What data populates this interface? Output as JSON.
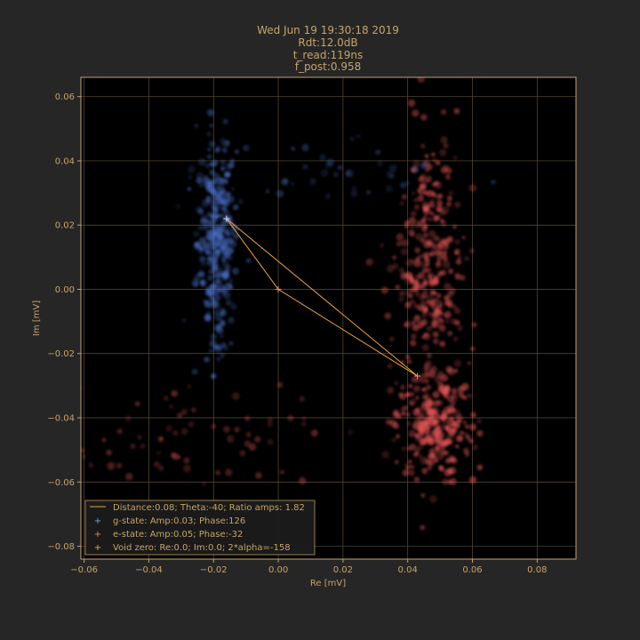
{
  "title_lines": [
    "Wed Jun 19 19:30:18 2019",
    "Rdt:12.0dB",
    "t_read:119ns",
    "f_post:0.958"
  ],
  "colors": {
    "background": "#262626",
    "axes_bg": "#000000",
    "accent": "#c8a36a",
    "grid": "#5e4f34",
    "line": "#e8a33a",
    "g_state": "#4a70c8",
    "e_state": "#f05a5a"
  },
  "chart_data": {
    "type": "scatter",
    "xlabel": "Re [mV]",
    "ylabel": "Im [mV]",
    "xlim": [
      -0.061,
      0.092
    ],
    "ylim": [
      -0.084,
      0.066
    ],
    "xticks": [
      -0.06,
      -0.04,
      -0.02,
      0.0,
      0.02,
      0.04,
      0.06,
      0.08
    ],
    "xtick_labels": [
      "−0.06",
      "−0.04",
      "−0.02",
      "0.00",
      "0.02",
      "0.04",
      "0.06",
      "0.08"
    ],
    "yticks": [
      0.06,
      0.04,
      0.02,
      0.0,
      -0.02,
      -0.04,
      -0.06,
      -0.08
    ],
    "ytick_labels": [
      "0.06",
      "0.04",
      "0.02",
      "0.00",
      "−0.02",
      "−0.04",
      "−0.06",
      "−0.08"
    ],
    "grid": true,
    "legend_position": "lower-left",
    "clusters": [
      {
        "state": "g",
        "center": [
          -0.019,
          0.015
        ],
        "spread": [
          0.003,
          0.016
        ],
        "count": 320
      },
      {
        "state": "e",
        "center": [
          0.048,
          -0.042
        ],
        "spread": [
          0.006,
          0.008
        ],
        "count": 260
      },
      {
        "state": "e",
        "center": [
          0.047,
          0.005
        ],
        "spread": [
          0.005,
          0.022
        ],
        "count": 320
      },
      {
        "state": "e",
        "center": [
          -0.03,
          -0.045
        ],
        "spread": [
          0.02,
          0.008
        ],
        "count": 70
      },
      {
        "state": "g",
        "center": [
          0.015,
          0.035
        ],
        "spread": [
          0.018,
          0.006
        ],
        "count": 40
      }
    ],
    "points": {
      "g_state": [
        -0.016,
        0.022
      ],
      "e_state": [
        0.043,
        -0.027
      ],
      "void_zero": [
        0.0,
        0.0
      ]
    },
    "legend": [
      {
        "marker": "line",
        "label": "Distance:0.08; Theta:-40; Ratio amps: 1.82"
      },
      {
        "marker": "plus-g",
        "label": "g-state: Amp:0.03; Phase:126"
      },
      {
        "marker": "plus-e",
        "label": "e-state: Amp:0.05; Phase:-32"
      },
      {
        "marker": "plus-void",
        "label": "Void zero: Re:0.0; Im:0.0; 2*alpha=-158"
      }
    ]
  }
}
